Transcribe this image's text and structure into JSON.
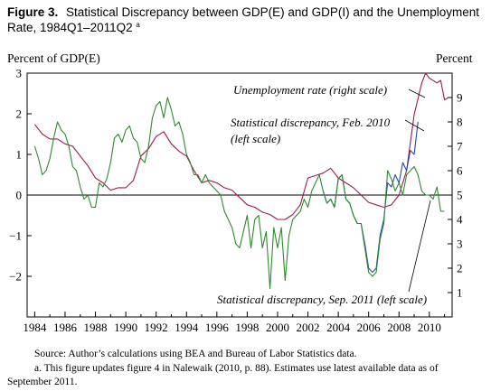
{
  "figure": {
    "title_bold": "Figure 3.",
    "title_line1": "Statistical Discrepancy between GDP(E) and GDP(I) and the Unemployment",
    "title_line2": "Rate, 1984Q1–2011Q2",
    "title_superscript": "a",
    "source": "Source: Author’s calculations using BEA and Bureau of Labor Statistics data.",
    "note_line1": "a. This figure updates figure 4 in Nalewaik (2010, p. 88). Estimates use latest available data as of",
    "note_line2": "September 2011."
  },
  "chart_data": {
    "type": "line",
    "ylabel_left": "Percent of GDP(E)",
    "ylabel_right": "Percent",
    "xlim": [
      1983.5,
      2011.5
    ],
    "ylim_left": [
      -3,
      3
    ],
    "ylim_right": [
      0,
      10
    ],
    "x_ticks": [
      1984,
      1986,
      1988,
      1990,
      1992,
      1994,
      1996,
      1998,
      2000,
      2002,
      2004,
      2006,
      2008,
      2010
    ],
    "y_ticks_left": [
      3,
      2,
      1,
      0,
      -1,
      -2
    ],
    "y_ticks_right": [
      9,
      8,
      7,
      6,
      5,
      4,
      3,
      2,
      1
    ],
    "zero_line": 0,
    "colors": {
      "unemployment": "#a01850",
      "discrepancy_feb2010": "#2c4aa0",
      "discrepancy_sep2011": "#2e8a2e",
      "axis": "#000000"
    },
    "annotations": [
      {
        "text": "Unemployment rate (right scale)",
        "series": "unemployment"
      },
      {
        "text": "Statistical discrepancy, Feb. 2010",
        "text2": "(left scale)",
        "series": "discrepancy_feb2010"
      },
      {
        "text": "Statistical discrepancy, Sep. 2011 (left scale)",
        "series": "discrepancy_sep2011"
      }
    ],
    "series": [
      {
        "key": "unemployment",
        "axis": "right",
        "points": [
          [
            1984.0,
            7.9
          ],
          [
            1984.5,
            7.5
          ],
          [
            1985.0,
            7.3
          ],
          [
            1985.5,
            7.3
          ],
          [
            1986.0,
            7.1
          ],
          [
            1986.5,
            7.0
          ],
          [
            1987.0,
            6.6
          ],
          [
            1987.5,
            6.2
          ],
          [
            1988.0,
            5.7
          ],
          [
            1988.5,
            5.5
          ],
          [
            1989.0,
            5.2
          ],
          [
            1989.5,
            5.3
          ],
          [
            1990.0,
            5.3
          ],
          [
            1990.5,
            5.6
          ],
          [
            1991.0,
            6.6
          ],
          [
            1991.5,
            6.9
          ],
          [
            1992.0,
            7.4
          ],
          [
            1992.5,
            7.6
          ],
          [
            1993.0,
            7.1
          ],
          [
            1993.5,
            6.8
          ],
          [
            1994.0,
            6.6
          ],
          [
            1994.5,
            6.0
          ],
          [
            1995.0,
            5.5
          ],
          [
            1995.5,
            5.6
          ],
          [
            1996.0,
            5.5
          ],
          [
            1996.5,
            5.3
          ],
          [
            1997.0,
            5.2
          ],
          [
            1997.5,
            4.9
          ],
          [
            1998.0,
            4.6
          ],
          [
            1998.5,
            4.5
          ],
          [
            1999.0,
            4.3
          ],
          [
            1999.5,
            4.2
          ],
          [
            2000.0,
            4.0
          ],
          [
            2000.5,
            4.0
          ],
          [
            2001.0,
            4.2
          ],
          [
            2001.5,
            4.6
          ],
          [
            2002.0,
            5.7
          ],
          [
            2002.5,
            5.8
          ],
          [
            2003.0,
            5.9
          ],
          [
            2003.5,
            6.1
          ],
          [
            2004.0,
            5.7
          ],
          [
            2004.5,
            5.5
          ],
          [
            2005.0,
            5.3
          ],
          [
            2005.5,
            5.0
          ],
          [
            2006.0,
            4.7
          ],
          [
            2006.5,
            4.6
          ],
          [
            2007.0,
            4.5
          ],
          [
            2007.5,
            4.6
          ],
          [
            2008.0,
            5.0
          ],
          [
            2008.5,
            6.0
          ],
          [
            2009.0,
            8.3
          ],
          [
            2009.5,
            9.6
          ],
          [
            2009.75,
            10.0
          ],
          [
            2010.0,
            9.8
          ],
          [
            2010.5,
            9.6
          ],
          [
            2010.75,
            9.7
          ],
          [
            2011.0,
            8.9
          ],
          [
            2011.25,
            9.0
          ]
        ]
      },
      {
        "key": "discrepancy_feb2010",
        "axis": "left",
        "points": [
          [
            2003.0,
            0.1
          ],
          [
            2003.25,
            -0.2
          ],
          [
            2003.5,
            -0.1
          ],
          [
            2003.75,
            -0.3
          ],
          [
            2004.0,
            0.4
          ],
          [
            2004.25,
            0.5
          ],
          [
            2004.5,
            -0.1
          ],
          [
            2004.75,
            -0.2
          ],
          [
            2005.0,
            -0.5
          ],
          [
            2005.25,
            -0.7
          ],
          [
            2005.5,
            -0.7
          ],
          [
            2005.75,
            -1.2
          ],
          [
            2006.0,
            -1.8
          ],
          [
            2006.25,
            -1.9
          ],
          [
            2006.5,
            -1.8
          ],
          [
            2006.75,
            -1.0
          ],
          [
            2007.0,
            -0.6
          ],
          [
            2007.25,
            0.3
          ],
          [
            2007.5,
            0.2
          ],
          [
            2007.75,
            0.5
          ],
          [
            2008.0,
            0.3
          ],
          [
            2008.25,
            0.8
          ],
          [
            2008.5,
            0.6
          ],
          [
            2008.75,
            1.1
          ],
          [
            2009.0,
            1.0
          ],
          [
            2009.25,
            1.8
          ]
        ]
      },
      {
        "key": "discrepancy_sep2011",
        "axis": "left",
        "points": [
          [
            1984.0,
            1.2
          ],
          [
            1984.25,
            0.9
          ],
          [
            1984.5,
            0.5
          ],
          [
            1984.75,
            0.6
          ],
          [
            1985.0,
            0.9
          ],
          [
            1985.25,
            1.4
          ],
          [
            1985.5,
            1.8
          ],
          [
            1985.75,
            1.6
          ],
          [
            1986.0,
            1.5
          ],
          [
            1986.25,
            1.2
          ],
          [
            1986.5,
            0.7
          ],
          [
            1986.75,
            0.6
          ],
          [
            1987.0,
            0.2
          ],
          [
            1987.25,
            -0.1
          ],
          [
            1987.5,
            0.0
          ],
          [
            1987.75,
            -0.3
          ],
          [
            1988.0,
            -0.3
          ],
          [
            1988.25,
            0.3
          ],
          [
            1988.5,
            0.2
          ],
          [
            1988.75,
            0.4
          ],
          [
            1989.0,
            0.8
          ],
          [
            1989.25,
            1.4
          ],
          [
            1989.5,
            1.5
          ],
          [
            1989.75,
            1.3
          ],
          [
            1990.0,
            1.6
          ],
          [
            1990.25,
            1.7
          ],
          [
            1990.5,
            1.4
          ],
          [
            1990.75,
            1.3
          ],
          [
            1991.0,
            0.9
          ],
          [
            1991.25,
            0.8
          ],
          [
            1991.5,
            1.2
          ],
          [
            1991.75,
            1.9
          ],
          [
            1992.0,
            2.2
          ],
          [
            1992.25,
            2.3
          ],
          [
            1992.5,
            1.9
          ],
          [
            1992.75,
            2.4
          ],
          [
            1993.0,
            2.1
          ],
          [
            1993.25,
            1.7
          ],
          [
            1993.5,
            1.8
          ],
          [
            1993.75,
            1.5
          ],
          [
            1994.0,
            1.0
          ],
          [
            1994.25,
            0.8
          ],
          [
            1994.5,
            0.5
          ],
          [
            1994.75,
            0.5
          ],
          [
            1995.0,
            0.3
          ],
          [
            1995.25,
            0.5
          ],
          [
            1995.5,
            0.3
          ],
          [
            1995.75,
            0.2
          ],
          [
            1996.0,
            0.1
          ],
          [
            1996.25,
            0.0
          ],
          [
            1996.5,
            -0.4
          ],
          [
            1996.75,
            -0.6
          ],
          [
            1997.0,
            -0.8
          ],
          [
            1997.25,
            -1.2
          ],
          [
            1997.5,
            -1.3
          ],
          [
            1997.75,
            -0.9
          ],
          [
            1998.0,
            -0.5
          ],
          [
            1998.25,
            -1.3
          ],
          [
            1998.5,
            -0.6
          ],
          [
            1998.75,
            -0.5
          ],
          [
            1999.0,
            -1.3
          ],
          [
            1999.25,
            -0.9
          ],
          [
            1999.5,
            -2.3
          ],
          [
            1999.75,
            -0.8
          ],
          [
            2000.0,
            -1.3
          ],
          [
            2000.25,
            -0.8
          ],
          [
            2000.5,
            -2.1
          ],
          [
            2000.75,
            -1.0
          ],
          [
            2001.0,
            -0.6
          ],
          [
            2001.25,
            -0.5
          ],
          [
            2001.5,
            -0.4
          ],
          [
            2001.75,
            -0.1
          ],
          [
            2002.0,
            -0.3
          ],
          [
            2002.25,
            0.1
          ],
          [
            2002.5,
            0.3
          ],
          [
            2002.75,
            0.5
          ],
          [
            2003.0,
            0.1
          ],
          [
            2003.25,
            -0.2
          ],
          [
            2003.5,
            -0.1
          ],
          [
            2003.75,
            -0.3
          ],
          [
            2004.0,
            0.4
          ],
          [
            2004.25,
            0.5
          ],
          [
            2004.5,
            -0.1
          ],
          [
            2004.75,
            -0.2
          ],
          [
            2005.0,
            -0.5
          ],
          [
            2005.25,
            -0.7
          ],
          [
            2005.5,
            -0.7
          ],
          [
            2005.75,
            -1.3
          ],
          [
            2006.0,
            -1.9
          ],
          [
            2006.25,
            -2.0
          ],
          [
            2006.5,
            -1.9
          ],
          [
            2006.75,
            -1.1
          ],
          [
            2007.0,
            -0.7
          ],
          [
            2007.25,
            0.6
          ],
          [
            2007.5,
            0.4
          ],
          [
            2007.75,
            0.1
          ],
          [
            2008.0,
            0.3
          ],
          [
            2008.25,
            0.0
          ],
          [
            2008.5,
            0.5
          ],
          [
            2008.75,
            0.6
          ],
          [
            2009.0,
            0.7
          ],
          [
            2009.25,
            0.5
          ],
          [
            2009.5,
            0.1
          ],
          [
            2009.75,
            0.0
          ],
          [
            2010.0,
            0.0
          ],
          [
            2010.25,
            -0.1
          ],
          [
            2010.5,
            0.2
          ],
          [
            2010.75,
            -0.4
          ],
          [
            2011.0,
            -0.4
          ]
        ]
      }
    ]
  }
}
